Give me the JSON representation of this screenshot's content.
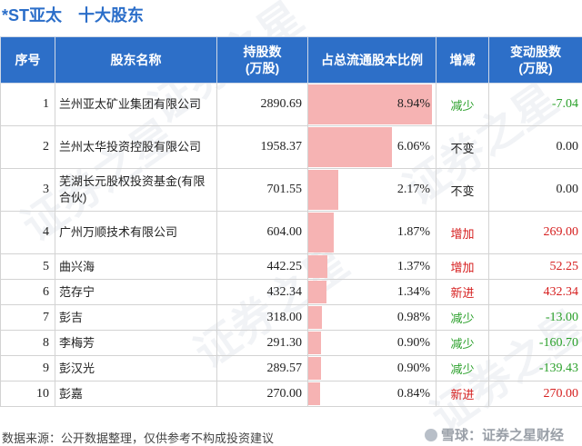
{
  "title": {
    "stock": "*ST亚太",
    "text": "十大股东"
  },
  "table": {
    "headers": [
      "序号",
      "股东名称",
      "持股数\n(万股)",
      "占总流通股本比例",
      "增减",
      "变动股数\n(万股)"
    ],
    "rows": [
      {
        "idx": "1",
        "name": "兰州亚太矿业集团有限公司",
        "shares": "2890.69",
        "pct": "8.94%",
        "pct_value": 8.94,
        "change": "减少",
        "change_type": "dec",
        "delta": "-7.04"
      },
      {
        "idx": "2",
        "name": "兰州太华投资控股有限公司",
        "shares": "1958.37",
        "pct": "6.06%",
        "pct_value": 6.06,
        "change": "不变",
        "change_type": "flat",
        "delta": "0.00"
      },
      {
        "idx": "3",
        "name": "芜湖长元股权投资基金(有限合伙)",
        "shares": "701.55",
        "pct": "2.17%",
        "pct_value": 2.17,
        "change": "不变",
        "change_type": "flat",
        "delta": "0.00"
      },
      {
        "idx": "4",
        "name": "广州万顺技术有限公司",
        "shares": "604.00",
        "pct": "1.87%",
        "pct_value": 1.87,
        "change": "增加",
        "change_type": "inc",
        "delta": "269.00"
      },
      {
        "idx": "5",
        "name": "曲兴海",
        "shares": "442.25",
        "pct": "1.37%",
        "pct_value": 1.37,
        "change": "增加",
        "change_type": "inc",
        "delta": "52.25"
      },
      {
        "idx": "6",
        "name": "范存宁",
        "shares": "432.34",
        "pct": "1.34%",
        "pct_value": 1.34,
        "change": "新进",
        "change_type": "inc",
        "delta": "432.34"
      },
      {
        "idx": "7",
        "name": "彭吉",
        "shares": "318.00",
        "pct": "0.98%",
        "pct_value": 0.98,
        "change": "减少",
        "change_type": "dec",
        "delta": "-13.00"
      },
      {
        "idx": "8",
        "name": "李梅芳",
        "shares": "291.30",
        "pct": "0.90%",
        "pct_value": 0.9,
        "change": "减少",
        "change_type": "dec",
        "delta": "-160.70"
      },
      {
        "idx": "9",
        "name": "彭汉光",
        "shares": "289.57",
        "pct": "0.90%",
        "pct_value": 0.9,
        "change": "减少",
        "change_type": "dec",
        "delta": "-139.43"
      },
      {
        "idx": "10",
        "name": "彭嘉",
        "shares": "270.00",
        "pct": "0.84%",
        "pct_value": 0.84,
        "change": "新进",
        "change_type": "inc",
        "delta": "270.00"
      }
    ]
  },
  "footer": {
    "source": "数据来源：公开数据整理，仅供参考不构成投资建议",
    "brand": "雪球：证券之星财经"
  },
  "colors": {
    "header_bg": "#2d6fc8",
    "title": "#2b6ec9",
    "bar": "#f6b3b3",
    "increase": "#d62020",
    "decrease": "#2aa02a"
  }
}
